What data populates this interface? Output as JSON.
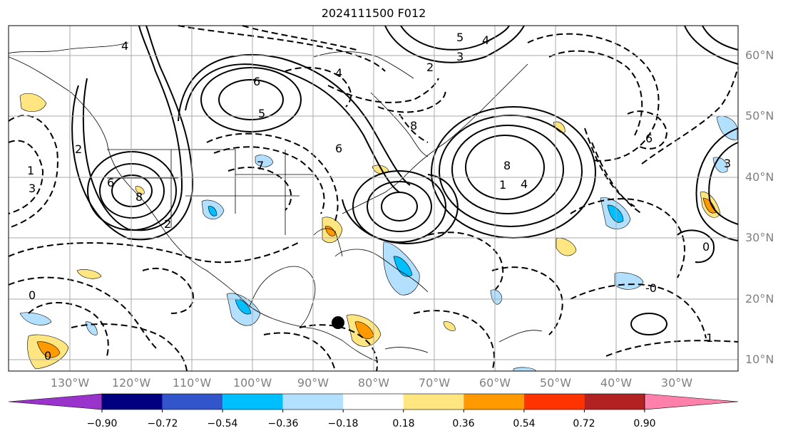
{
  "title": "2024111500 F012",
  "lat_labels": [
    "60°N",
    "50°N",
    "40°N",
    "30°N",
    "20°N",
    "10°N"
  ],
  "lon_labels": [
    "130°W",
    "120°W",
    "110°W",
    "100°W",
    "90°W",
    "80°W",
    "70°W",
    "60°W",
    "50°W",
    "40°W",
    "30°W"
  ],
  "colorbar": {
    "ticks": [
      "−0.90",
      "−0.72",
      "−0.54",
      "−0.36",
      "−0.18",
      "0.18",
      "0.36",
      "0.54",
      "0.72",
      "0.90"
    ],
    "colors": [
      "#9933cc",
      "#000080",
      "#3355cc",
      "#00bfff",
      "#b3e0ff",
      "#ffffff",
      "#ffe680",
      "#ff9900",
      "#ff3300",
      "#b22222",
      "#ff80aa"
    ]
  },
  "contour_labels": [
    "4",
    "1",
    "6",
    "2",
    "3",
    "8",
    "6",
    "4",
    "5",
    "7",
    "6",
    "8",
    "5",
    "4",
    "3",
    "2",
    "0",
    "0",
    "1",
    "2",
    "-0",
    "0",
    "1",
    "4",
    "6",
    "3",
    "8"
  ],
  "colors": {
    "grid": "#aaaaaa",
    "tick_label": "#808080",
    "contour": "#000000"
  }
}
